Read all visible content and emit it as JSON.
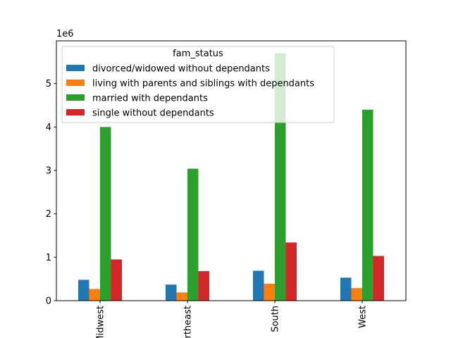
{
  "chart_data": {
    "type": "bar",
    "categories": [
      "Midwest",
      "Northeast",
      "South",
      "West"
    ],
    "series": [
      {
        "name": "divorced/widowed without dependants",
        "values": [
          480000,
          370000,
          690000,
          530000
        ],
        "color": "#1f77b4"
      },
      {
        "name": "living with parents and siblings with dependants",
        "values": [
          270000,
          190000,
          390000,
          290000
        ],
        "color": "#ff7f0e"
      },
      {
        "name": "married with dependants",
        "values": [
          4000000,
          3040000,
          5700000,
          4400000
        ],
        "color": "#2ca02c"
      },
      {
        "name": "single without dependants",
        "values": [
          950000,
          680000,
          1340000,
          1030000
        ],
        "color": "#d62728"
      }
    ],
    "legend_title": "fam_status",
    "legend_placement": "upper-left",
    "y_offset_label": "1e6",
    "yticks": [
      0,
      1000000,
      2000000,
      3000000,
      4000000,
      5000000
    ],
    "ytick_labels": [
      "0",
      "1",
      "2",
      "3",
      "4",
      "5"
    ],
    "ylim": [
      0,
      5985000
    ],
    "xlabel": "",
    "ylabel": "",
    "title": "",
    "grid": false
  }
}
